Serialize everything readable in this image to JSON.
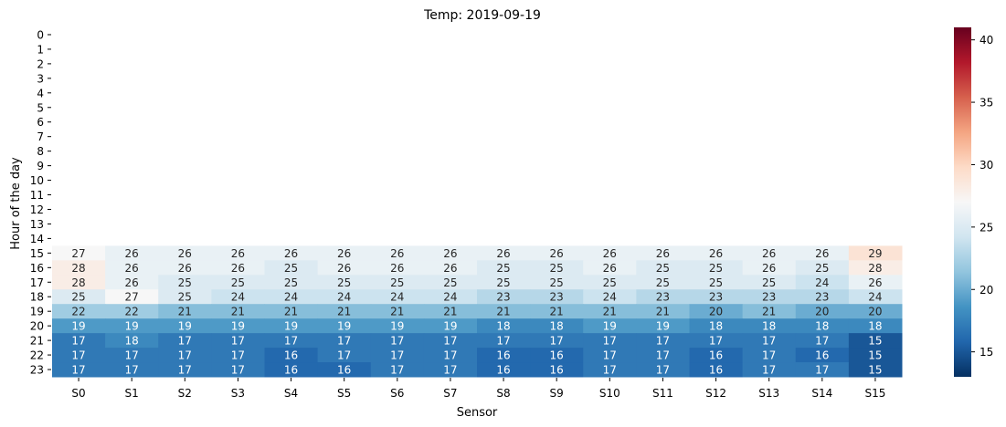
{
  "chart_data": {
    "type": "heatmap",
    "title": "Temp: 2019-09-19",
    "xlabel": "Sensor",
    "ylabel": "Hour of the day",
    "x": [
      "S0",
      "S1",
      "S2",
      "S3",
      "S4",
      "S5",
      "S6",
      "S7",
      "S8",
      "S9",
      "S10",
      "S11",
      "S12",
      "S13",
      "S14",
      "S15"
    ],
    "y": [
      "0",
      "1",
      "2",
      "3",
      "4",
      "5",
      "6",
      "7",
      "8",
      "9",
      "10",
      "11",
      "12",
      "13",
      "14",
      "15",
      "16",
      "17",
      "18",
      "19",
      "20",
      "21",
      "22",
      "23"
    ],
    "values": [
      [
        null,
        null,
        null,
        null,
        null,
        null,
        null,
        null,
        null,
        null,
        null,
        null,
        null,
        null,
        null,
        null
      ],
      [
        null,
        null,
        null,
        null,
        null,
        null,
        null,
        null,
        null,
        null,
        null,
        null,
        null,
        null,
        null,
        null
      ],
      [
        null,
        null,
        null,
        null,
        null,
        null,
        null,
        null,
        null,
        null,
        null,
        null,
        null,
        null,
        null,
        null
      ],
      [
        null,
        null,
        null,
        null,
        null,
        null,
        null,
        null,
        null,
        null,
        null,
        null,
        null,
        null,
        null,
        null
      ],
      [
        null,
        null,
        null,
        null,
        null,
        null,
        null,
        null,
        null,
        null,
        null,
        null,
        null,
        null,
        null,
        null
      ],
      [
        null,
        null,
        null,
        null,
        null,
        null,
        null,
        null,
        null,
        null,
        null,
        null,
        null,
        null,
        null,
        null
      ],
      [
        null,
        null,
        null,
        null,
        null,
        null,
        null,
        null,
        null,
        null,
        null,
        null,
        null,
        null,
        null,
        null
      ],
      [
        null,
        null,
        null,
        null,
        null,
        null,
        null,
        null,
        null,
        null,
        null,
        null,
        null,
        null,
        null,
        null
      ],
      [
        null,
        null,
        null,
        null,
        null,
        null,
        null,
        null,
        null,
        null,
        null,
        null,
        null,
        null,
        null,
        null
      ],
      [
        null,
        null,
        null,
        null,
        null,
        null,
        null,
        null,
        null,
        null,
        null,
        null,
        null,
        null,
        null,
        null
      ],
      [
        null,
        null,
        null,
        null,
        null,
        null,
        null,
        null,
        null,
        null,
        null,
        null,
        null,
        null,
        null,
        null
      ],
      [
        null,
        null,
        null,
        null,
        null,
        null,
        null,
        null,
        null,
        null,
        null,
        null,
        null,
        null,
        null,
        null
      ],
      [
        null,
        null,
        null,
        null,
        null,
        null,
        null,
        null,
        null,
        null,
        null,
        null,
        null,
        null,
        null,
        null
      ],
      [
        null,
        null,
        null,
        null,
        null,
        null,
        null,
        null,
        null,
        null,
        null,
        null,
        null,
        null,
        null,
        null
      ],
      [
        null,
        null,
        null,
        null,
        null,
        null,
        null,
        null,
        null,
        null,
        null,
        null,
        null,
        null,
        null,
        null
      ],
      [
        27,
        26,
        26,
        26,
        26,
        26,
        26,
        26,
        26,
        26,
        26,
        26,
        26,
        26,
        26,
        29
      ],
      [
        28,
        26,
        26,
        26,
        25,
        26,
        26,
        26,
        25,
        25,
        26,
        25,
        25,
        26,
        25,
        28
      ],
      [
        28,
        26,
        25,
        25,
        25,
        25,
        25,
        25,
        25,
        25,
        25,
        25,
        25,
        25,
        24,
        26
      ],
      [
        25,
        27,
        25,
        24,
        24,
        24,
        24,
        24,
        23,
        23,
        24,
        23,
        23,
        23,
        23,
        24
      ],
      [
        22,
        22,
        21,
        21,
        21,
        21,
        21,
        21,
        21,
        21,
        21,
        21,
        20,
        21,
        20,
        20
      ],
      [
        19,
        19,
        19,
        19,
        19,
        19,
        19,
        19,
        18,
        18,
        19,
        19,
        18,
        18,
        18,
        18
      ],
      [
        17,
        18,
        17,
        17,
        17,
        17,
        17,
        17,
        17,
        17,
        17,
        17,
        17,
        17,
        17,
        15
      ],
      [
        17,
        17,
        17,
        17,
        16,
        17,
        17,
        17,
        16,
        16,
        17,
        17,
        16,
        17,
        16,
        15
      ],
      [
        17,
        17,
        17,
        17,
        16,
        16,
        17,
        17,
        16,
        16,
        17,
        17,
        16,
        17,
        17,
        15
      ]
    ],
    "colorbar": {
      "min": 13,
      "max": 41,
      "ticks": [
        15,
        20,
        25,
        30,
        35,
        40
      ],
      "colormap": "RdBu_r"
    },
    "grid": false,
    "legend": "colorbar-right"
  }
}
